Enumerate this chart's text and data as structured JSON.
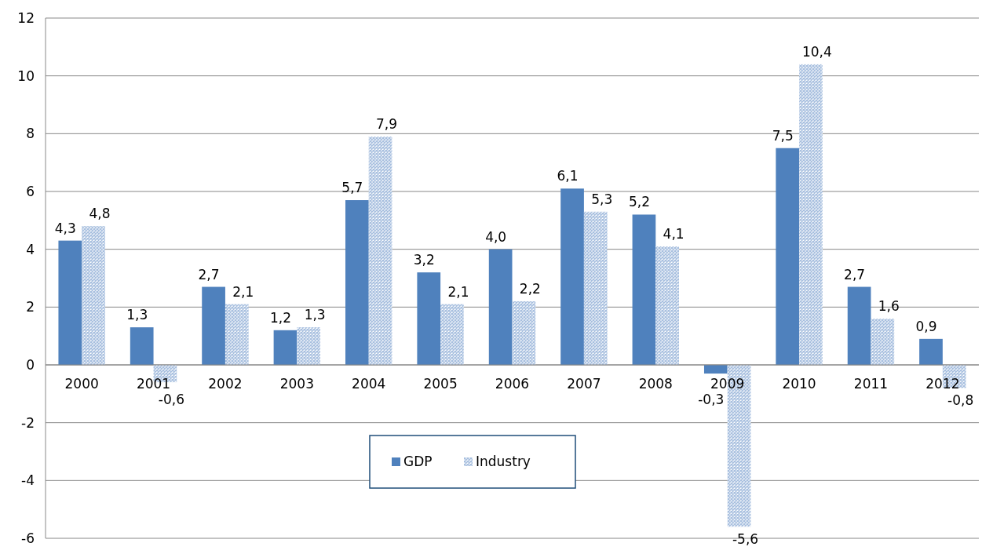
{
  "chart_data": {
    "type": "bar",
    "categories": [
      "2000",
      "2001",
      "2002",
      "2003",
      "2004",
      "2005",
      "2006",
      "2007",
      "2008",
      "2009",
      "2010",
      "2011",
      "2012"
    ],
    "series": [
      {
        "name": "GDP",
        "color": "#4f81bd",
        "values": [
          4.3,
          1.3,
          2.7,
          1.2,
          5.7,
          3.2,
          4.0,
          6.1,
          5.2,
          -0.3,
          7.5,
          2.7,
          0.9
        ],
        "value_labels": [
          "4,3",
          "1,3",
          "2,7",
          "1,2",
          "5,7",
          "3,2",
          "4,0",
          "6,1",
          "5,2",
          "-0,3",
          "7,5",
          "2,7",
          "0,9"
        ]
      },
      {
        "name": "Industry",
        "color": "#a7bfdf",
        "values": [
          4.8,
          -0.6,
          2.1,
          1.3,
          7.9,
          2.1,
          2.2,
          5.3,
          4.1,
          -5.6,
          10.4,
          1.6,
          -0.8
        ],
        "value_labels": [
          "4,8",
          "-0,6",
          "2,1",
          "1,3",
          "7,9",
          "2,1",
          "2,2",
          "5,3",
          "4,1",
          "-5,6",
          "10,4",
          "1,6",
          "-0,8"
        ]
      }
    ],
    "ylim": [
      -6,
      12
    ],
    "yticks": [
      -6,
      -4,
      -2,
      0,
      2,
      4,
      6,
      8,
      10,
      12
    ],
    "grid": "y",
    "legend": "bottom"
  }
}
